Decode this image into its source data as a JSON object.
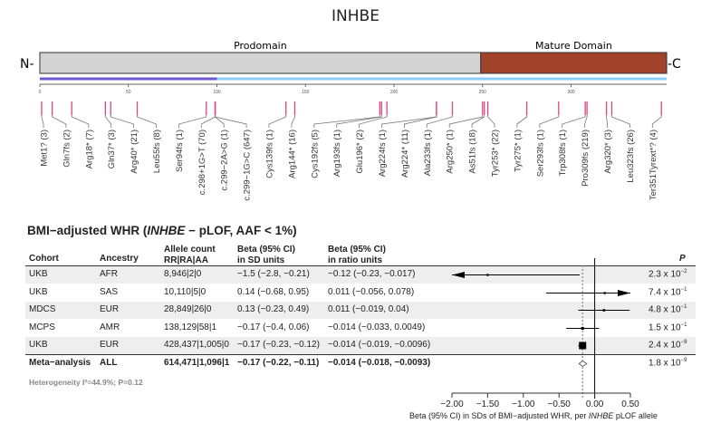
{
  "title": "INHBE",
  "protein": {
    "n_term": "N-",
    "c_term": "-C",
    "domains": [
      {
        "label": "Prodomain",
        "start": 0,
        "end": 249,
        "color": "#d3d3d3"
      },
      {
        "label": "Mature Domain",
        "start": 249,
        "end": 354,
        "color": "#a0432a"
      }
    ],
    "segments": [
      {
        "start": 0,
        "end": 100,
        "color": "#6a5acd"
      },
      {
        "start": 100,
        "end": 354,
        "color": "#87cefa"
      }
    ],
    "axis_ticks": [
      "0",
      "50",
      "100",
      "150",
      "200",
      "250",
      "300"
    ],
    "variants": [
      {
        "label": "Met1? (3)",
        "pos": [
          1
        ]
      },
      {
        "label": "Gln7fs (2)",
        "pos": [
          7
        ]
      },
      {
        "label": "Arg18* (7)",
        "pos": [
          18
        ]
      },
      {
        "label": "Gln37* (3)",
        "pos": [
          37
        ]
      },
      {
        "label": "Arg40* (21)",
        "pos": [
          40
        ]
      },
      {
        "label": "Leu55fs (8)",
        "pos": [
          55
        ]
      },
      {
        "label": "Ser94fs (1)",
        "pos": [
          94
        ]
      },
      {
        "label": "c.298+1G>T (70)",
        "pos": [
          99
        ]
      },
      {
        "label": "c.299−2A>G (1)",
        "pos": [
          99
        ]
      },
      {
        "label": "c.299−1G>C (647)",
        "pos": [
          99
        ]
      },
      {
        "label": "Cys139fs (1)",
        "pos": [
          139
        ]
      },
      {
        "label": "Arg144* (16)",
        "pos": [
          144
        ]
      },
      {
        "label": "Cys192fs (5)",
        "pos": [
          192
        ]
      },
      {
        "label": "Arg193fs (1)",
        "pos": [
          193
        ]
      },
      {
        "label": "Glu196* (2)",
        "pos": [
          196
        ]
      },
      {
        "label": "Arg224fs (1)",
        "pos": [
          224
        ]
      },
      {
        "label": "Arg224* (11)",
        "pos": [
          224
        ]
      },
      {
        "label": "Ala233fs (1)",
        "pos": [
          233
        ]
      },
      {
        "label": "Arg250* (1)",
        "pos": [
          250
        ]
      },
      {
        "label": "As51fs (18)",
        "pos": [
          251
        ]
      },
      {
        "label": "Tyr253* (22)",
        "pos": [
          253
        ]
      },
      {
        "label": "Tyr275* (1)",
        "pos": [
          275
        ]
      },
      {
        "label": "Ser293fs (1)",
        "pos": [
          293
        ]
      },
      {
        "label": "Trp308fs (1)",
        "pos": [
          308
        ]
      },
      {
        "label": "Pro309fs (219)",
        "pos": [
          309
        ]
      },
      {
        "label": "Arg320* (3)",
        "pos": [
          320
        ]
      },
      {
        "label": "Leu323fs (26)",
        "pos": [
          323
        ]
      },
      {
        "label": "Ter351Tyrext*? (4)",
        "pos": [
          351
        ]
      }
    ],
    "variant_color": "#e0457b"
  },
  "forest": {
    "title_prefix": "BMI−adjusted WHR (",
    "title_gene": "INHBE",
    "title_suffix": " − pLOF, AAF < 1%)",
    "headers": {
      "cohort": "Cohort",
      "ancestry": "Ancestry",
      "allele_1": "Allele count",
      "allele_2": "RR|RA|AA",
      "beta_sd_1": "Beta (95% CI)",
      "beta_sd_2": "in SD units",
      "beta_ratio_1": "Beta (95% CI)",
      "beta_ratio_2": "in ratio units",
      "p": "P"
    },
    "rows": [
      {
        "cohort": "UKB",
        "ancestry": "AFR",
        "allele": "8,946|2|0",
        "beta_sd": "−1.5 (−2.8, −0.21)",
        "beta_ratio": "−0.12 (−0.23, −0.017)",
        "p_base": "2.3 x 10",
        "p_exp": "−2"
      },
      {
        "cohort": "UKB",
        "ancestry": "SAS",
        "allele": "10,110|5|0",
        "beta_sd": "0.14 (−0.68, 0.95)",
        "beta_ratio": "0.011 (−0.056, 0.078)",
        "p_base": "7.4 x 10",
        "p_exp": "−1"
      },
      {
        "cohort": "MDCS",
        "ancestry": "EUR",
        "allele": "28,849|26|0",
        "beta_sd": "0.13 (−0.23, 0.49)",
        "beta_ratio": "0.011 (−0.019, 0.04)",
        "p_base": "4.8 x 10",
        "p_exp": "−1"
      },
      {
        "cohort": "MCPS",
        "ancestry": "AMR",
        "allele": "138,129|58|1",
        "beta_sd": "−0.17 (−0.4, 0.06)",
        "beta_ratio": "−0.014 (−0.033, 0.0049)",
        "p_base": "1.5 x 10",
        "p_exp": "−1"
      },
      {
        "cohort": "UKB",
        "ancestry": "EUR",
        "allele": "428,437|1,005|0",
        "beta_sd": "−0.17 (−0.23, −0.12)",
        "beta_ratio": "−0.014 (−0.019, −0.0096)",
        "p_base": "2.4 x 10",
        "p_exp": "−9"
      }
    ],
    "meta": {
      "cohort": "Meta−analysis",
      "ancestry": "ALL",
      "allele": "614,471|1,096|1",
      "beta_sd": "−0.17 (−0.22, −0.11)",
      "beta_ratio": "−0.014 (−0.018, −0.0093)",
      "p_base": "1.8 x 10",
      "p_exp": "−9"
    },
    "heterogeneity": "Heterogeneity I²=44.9%; P=0.12",
    "xlabel_prefix": "Beta (95% CI) in SDs of BMI−adjusted WHR, per ",
    "xlabel_gene": "INHBE",
    "xlabel_suffix": " pLOF allele"
  },
  "chart_data": {
    "type": "forest",
    "xlabel": "Beta (95% CI) in SDs of BMI−adjusted WHR, per INHBE pLOF allele",
    "xlim": [
      -2.0,
      0.5
    ],
    "xticks": [
      "−2.00",
      "−1.50",
      "−1.00",
      "−0.50",
      "0.00",
      "0.50"
    ],
    "xtick_values": [
      -2.0,
      -1.5,
      -1.0,
      -0.5,
      0.0,
      0.5
    ],
    "reference_line": 0,
    "meta_line": -0.17,
    "points": [
      {
        "label": "UKB AFR",
        "beta": -1.5,
        "lo": -2.8,
        "hi": -0.21,
        "weight": 0.05
      },
      {
        "label": "UKB SAS",
        "beta": 0.14,
        "lo": -0.68,
        "hi": 0.95,
        "weight": 0.05
      },
      {
        "label": "MDCS EUR",
        "beta": 0.13,
        "lo": -0.23,
        "hi": 0.49,
        "weight": 0.1
      },
      {
        "label": "MCPS AMR",
        "beta": -0.17,
        "lo": -0.4,
        "hi": 0.06,
        "weight": 0.2
      },
      {
        "label": "UKB EUR",
        "beta": -0.17,
        "lo": -0.23,
        "hi": -0.12,
        "weight": 1.0
      }
    ],
    "meta": {
      "label": "Meta-analysis",
      "beta": -0.17,
      "lo": -0.22,
      "hi": -0.11
    }
  }
}
